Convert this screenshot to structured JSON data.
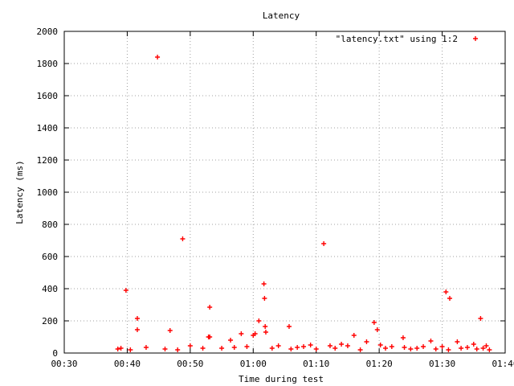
{
  "chart_data": {
    "type": "scatter",
    "title": "Latency",
    "xlabel": "Time during test",
    "ylabel": "Latency (ms)",
    "x_unit": "minutes",
    "xlim": [
      30,
      100
    ],
    "ylim": [
      0,
      2000
    ],
    "x_ticks": [
      {
        "v": 30,
        "label": "00:30"
      },
      {
        "v": 40,
        "label": "00:40"
      },
      {
        "v": 50,
        "label": "00:50"
      },
      {
        "v": 60,
        "label": "01:00"
      },
      {
        "v": 70,
        "label": "01:10"
      },
      {
        "v": 80,
        "label": "01:20"
      },
      {
        "v": 90,
        "label": "01:30"
      },
      {
        "v": 100,
        "label": "01:40"
      }
    ],
    "y_ticks": [
      0,
      200,
      400,
      600,
      800,
      1000,
      1200,
      1400,
      1600,
      1800,
      2000
    ],
    "grid": true,
    "legend_position": "top-right",
    "marker": "plus",
    "series": [
      {
        "name": "\"latency.txt\" using 1:2",
        "color": "#ff0000",
        "x": [
          39.8,
          41.6,
          41.6,
          44.8,
          48.8,
          53.1,
          61.7,
          61.8,
          71.2,
          90.6,
          91.2,
          96.1,
          60.9,
          61.9,
          62.0,
          65.7,
          79.2,
          79.7,
          60.3,
          53.1,
          46.8,
          52.9,
          56.4,
          58.1,
          60.0,
          69.1,
          72.2,
          80.2,
          83.8,
          88.2,
          92.4,
          95.0,
          97.0,
          38.5,
          39.0,
          40.5,
          43.0,
          46.0,
          48.0,
          50.0,
          52.0,
          55.0,
          57.0,
          59.0,
          63.0,
          64.0,
          66.0,
          67.0,
          68.0,
          70.0,
          73.0,
          74.0,
          75.0,
          76.0,
          77.0,
          78.0,
          81.0,
          82.0,
          84.0,
          85.0,
          86.0,
          87.0,
          89.0,
          90.0,
          91.0,
          93.0,
          94.0,
          95.5,
          96.5,
          97.5
        ],
        "y": [
          390,
          215,
          145,
          1840,
          710,
          285,
          430,
          340,
          680,
          380,
          340,
          215,
          200,
          165,
          130,
          165,
          190,
          145,
          120,
          100,
          140,
          100,
          80,
          120,
          110,
          50,
          45,
          50,
          95,
          75,
          70,
          55,
          45,
          25,
          30,
          20,
          35,
          25,
          20,
          45,
          30,
          30,
          35,
          40,
          30,
          45,
          25,
          35,
          40,
          25,
          30,
          55,
          45,
          110,
          20,
          70,
          30,
          40,
          35,
          25,
          30,
          40,
          25,
          40,
          20,
          30,
          35,
          25,
          30,
          20
        ]
      }
    ]
  }
}
